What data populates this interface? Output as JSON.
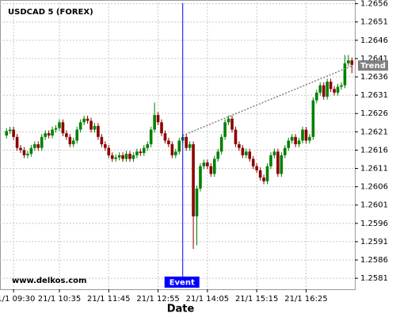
{
  "chart_data": {
    "type": "candlestick",
    "title": "USDCAD 5 (FOREX)",
    "watermark": "www.delkos.com",
    "x_label": "Date",
    "categories": [
      null,
      null,
      "21/1 09:30",
      null,
      null,
      null,
      null,
      null,
      null,
      null,
      null,
      null,
      null,
      null,
      null,
      "21/1 10:35",
      null,
      null,
      null,
      null,
      null,
      null,
      null,
      null,
      null,
      null,
      null,
      null,
      null,
      "21/1 11:45",
      null,
      null,
      null,
      null,
      null,
      null,
      null,
      null,
      null,
      null,
      null,
      null,
      null,
      "21/1 12:55",
      null,
      null,
      null,
      null,
      null,
      null,
      null,
      null,
      null,
      null,
      null,
      null,
      null,
      "21/1 14:05",
      null,
      null,
      null,
      null,
      null,
      null,
      null,
      null,
      null,
      null,
      null,
      null,
      null,
      "21/1 15:15",
      null,
      null,
      null,
      null,
      null,
      null,
      null,
      null,
      null,
      null,
      null,
      null,
      null,
      "21/1 16:25",
      null,
      null,
      null,
      null,
      null,
      null,
      null,
      null,
      null,
      null,
      null,
      null,
      null
    ],
    "open": [
      1.262,
      1.26212,
      1.26216,
      1.26196,
      1.26166,
      1.2616,
      1.26146,
      1.2615,
      1.26166,
      1.26176,
      1.26166,
      1.26196,
      1.26206,
      1.262,
      1.26216,
      1.2622,
      1.26236,
      1.26206,
      1.26196,
      1.26176,
      1.26186,
      1.26216,
      1.26236,
      1.26246,
      1.2624,
      1.26216,
      1.26226,
      1.26196,
      1.26176,
      1.26166,
      1.26146,
      1.26136,
      1.2614,
      1.26146,
      1.26136,
      1.2615,
      1.26136,
      1.26146,
      1.26156,
      1.26152,
      1.26166,
      1.26176,
      1.26216,
      1.26256,
      1.26236,
      1.26206,
      1.26186,
      1.26176,
      1.26146,
      1.26156,
      1.26186,
      1.26196,
      1.26166,
      1.26176,
      1.25979,
      1.26055,
      1.26116,
      1.26126,
      1.26116,
      1.26095,
      1.26136,
      1.26156,
      1.26196,
      1.26236,
      1.26246,
      1.26216,
      1.26176,
      1.26166,
      1.26146,
      1.26156,
      1.26136,
      1.26116,
      1.26105,
      1.26085,
      1.26075,
      1.26116,
      1.26146,
      1.26156,
      1.26095,
      1.26146,
      1.26166,
      1.26186,
      1.26196,
      1.26176,
      1.26186,
      1.26216,
      1.26186,
      1.26196,
      1.26296,
      1.26317,
      1.26337,
      1.26306,
      1.26347,
      1.26327,
      1.26317,
      1.26333,
      1.26337,
      1.26397,
      1.26405
    ],
    "high": [
      1.2622,
      1.26224,
      1.26224,
      1.26204,
      1.26174,
      1.26168,
      1.26158,
      1.26174,
      1.26184,
      1.26184,
      1.26204,
      1.26214,
      1.26214,
      1.26224,
      1.26228,
      1.26244,
      1.26244,
      1.26214,
      1.26204,
      1.26194,
      1.26224,
      1.26244,
      1.26254,
      1.26254,
      1.26248,
      1.26234,
      1.26234,
      1.26204,
      1.26184,
      1.26174,
      1.26154,
      1.26148,
      1.26154,
      1.26154,
      1.26158,
      1.26158,
      1.26154,
      1.26164,
      1.26164,
      1.26174,
      1.26184,
      1.26224,
      1.2629,
      1.26264,
      1.26244,
      1.26214,
      1.26194,
      1.26184,
      1.26164,
      1.26194,
      1.26204,
      1.26204,
      1.26184,
      1.26184,
      1.26063,
      1.26124,
      1.26134,
      1.26134,
      1.26124,
      1.26144,
      1.26164,
      1.26204,
      1.26244,
      1.26254,
      1.26254,
      1.26224,
      1.26184,
      1.26174,
      1.26164,
      1.26164,
      1.26144,
      1.26124,
      1.26113,
      1.26093,
      1.26124,
      1.26154,
      1.26164,
      1.26164,
      1.26154,
      1.26174,
      1.26194,
      1.26204,
      1.26204,
      1.26194,
      1.26224,
      1.26224,
      1.26204,
      1.26304,
      1.26325,
      1.26345,
      1.26345,
      1.26355,
      1.26355,
      1.26335,
      1.26341,
      1.26345,
      1.2642,
      1.2642,
      1.26413
    ],
    "low": [
      1.26192,
      1.26204,
      1.26188,
      1.26158,
      1.26152,
      1.26138,
      1.26138,
      1.26142,
      1.26158,
      1.26158,
      1.26158,
      1.26188,
      1.26192,
      1.26192,
      1.26208,
      1.26212,
      1.26198,
      1.26188,
      1.26168,
      1.26168,
      1.26178,
      1.26208,
      1.26228,
      1.26232,
      1.26208,
      1.26208,
      1.26188,
      1.26168,
      1.26158,
      1.26138,
      1.26128,
      1.26128,
      1.26132,
      1.26128,
      1.26128,
      1.26128,
      1.26128,
      1.26138,
      1.26144,
      1.26144,
      1.26158,
      1.26168,
      1.26208,
      1.26228,
      1.26198,
      1.26178,
      1.26168,
      1.26138,
      1.26138,
      1.26148,
      1.26178,
      1.26158,
      1.26158,
      1.2589,
      1.259,
      1.26047,
      1.26108,
      1.26108,
      1.26087,
      1.26087,
      1.26128,
      1.26148,
      1.26188,
      1.26228,
      1.26208,
      1.26168,
      1.26158,
      1.26138,
      1.26138,
      1.26128,
      1.26108,
      1.26097,
      1.26077,
      1.26067,
      1.26067,
      1.26108,
      1.26138,
      1.26087,
      1.26087,
      1.26138,
      1.26158,
      1.26178,
      1.26168,
      1.26168,
      1.26178,
      1.26178,
      1.26178,
      1.26188,
      1.26288,
      1.26309,
      1.26298,
      1.26298,
      1.26319,
      1.26309,
      1.26309,
      1.26325,
      1.26329,
      1.26389,
      1.2637
    ],
    "close": [
      1.26212,
      1.26216,
      1.26196,
      1.26166,
      1.2616,
      1.26146,
      1.2615,
      1.26166,
      1.26176,
      1.26166,
      1.26196,
      1.26206,
      1.262,
      1.26216,
      1.2622,
      1.26236,
      1.26206,
      1.26196,
      1.26176,
      1.26186,
      1.26216,
      1.26236,
      1.26246,
      1.2624,
      1.26216,
      1.26226,
      1.26196,
      1.26176,
      1.26166,
      1.26146,
      1.26136,
      1.2614,
      1.26146,
      1.26136,
      1.2615,
      1.26136,
      1.26146,
      1.26156,
      1.26152,
      1.26166,
      1.26176,
      1.26216,
      1.26256,
      1.26236,
      1.26206,
      1.26186,
      1.26176,
      1.26146,
      1.26156,
      1.26186,
      1.26196,
      1.26166,
      1.26176,
      1.25979,
      1.26055,
      1.26116,
      1.26126,
      1.26116,
      1.26095,
      1.26136,
      1.26156,
      1.26196,
      1.26236,
      1.26246,
      1.26216,
      1.26176,
      1.26166,
      1.26146,
      1.26156,
      1.26136,
      1.26116,
      1.26105,
      1.26085,
      1.26075,
      1.26116,
      1.26146,
      1.26156,
      1.26095,
      1.26146,
      1.26166,
      1.26186,
      1.26196,
      1.26176,
      1.26186,
      1.26216,
      1.26186,
      1.26196,
      1.26296,
      1.26317,
      1.26337,
      1.26306,
      1.26347,
      1.26327,
      1.26317,
      1.26333,
      1.26337,
      1.26397,
      1.26405,
      1.26393
    ],
    "up_color": "#008000",
    "down_color": "#8b0000",
    "ylim": [
      1.2578,
      1.2657
    ],
    "yticks": [
      1.2581,
      1.2586,
      1.2591,
      1.2596,
      1.2601,
      1.2606,
      1.2611,
      1.2616,
      1.2621,
      1.2626,
      1.2631,
      1.2636,
      1.2641,
      1.2646,
      1.2651,
      1.2656
    ],
    "grid": true,
    "event": {
      "label": "Event",
      "index": 50,
      "color": "#0000ff"
    },
    "trend": {
      "label": "Trend",
      "start_index": 50,
      "start": 1.262,
      "end_index": 98,
      "end": 1.2639,
      "color": "#808080"
    }
  }
}
